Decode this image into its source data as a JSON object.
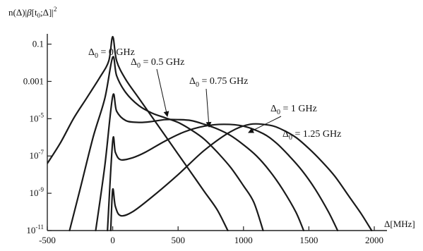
{
  "chart_data": {
    "type": "line",
    "xlabel": "Δ[MHz]",
    "ylabel": "n(Δ)|β[t0;Δ]|²",
    "ylabel_parts": {
      "n": "n(Δ)|",
      "beta": "β",
      "bracket": "[t",
      "sub0": "0",
      "mid": ";Δ]|",
      "sup2": "2"
    },
    "xlabel_parts": {
      "delta": "Δ[MHz]"
    },
    "x_range": [
      -500,
      2000
    ],
    "y_scale": "log",
    "y_range_exp": [
      -11,
      -0.6
    ],
    "x_ticks": [
      -500,
      0,
      500,
      1000,
      1500,
      2000
    ],
    "x_tick_labels": [
      "-500",
      "0",
      "500",
      "1000",
      "1500",
      "2000"
    ],
    "y_ticks": [
      {
        "exp": -1,
        "base": "0.1",
        "sup": ""
      },
      {
        "exp": -3,
        "base": "0.001",
        "sup": ""
      },
      {
        "exp": -5,
        "base": "10",
        "sup": "-5"
      },
      {
        "exp": -7,
        "base": "10",
        "sup": "-7"
      },
      {
        "exp": -9,
        "base": "10",
        "sup": "-9"
      },
      {
        "exp": -11,
        "base": "10",
        "sup": "-11"
      }
    ],
    "series": [
      {
        "name": "Δ0 = 0 GHz",
        "label_main": "Δ",
        "label_sub": "0",
        "label_rest": " = 0 GHz",
        "points": [
          [
            -500,
            -7.4
          ],
          [
            -400,
            -6.3
          ],
          [
            -300,
            -5.0
          ],
          [
            -200,
            -3.9
          ],
          [
            -100,
            -2.8
          ],
          [
            -30,
            -1.9
          ],
          [
            0,
            -0.6
          ],
          [
            30,
            -1.9
          ],
          [
            100,
            -2.9
          ],
          [
            200,
            -3.9
          ],
          [
            300,
            -4.9
          ],
          [
            400,
            -5.9
          ],
          [
            500,
            -6.9
          ],
          [
            600,
            -7.9
          ],
          [
            700,
            -8.9
          ],
          [
            800,
            -9.9
          ],
          [
            880,
            -11.0
          ]
        ]
      },
      {
        "name": "Δ0 = 0.5 GHz",
        "label_main": "Δ",
        "label_sub": "0",
        "label_rest": " = 0.5 GHz",
        "points": [
          [
            -330,
            -11.0
          ],
          [
            -250,
            -8.8
          ],
          [
            -150,
            -6.0
          ],
          [
            -60,
            -3.9
          ],
          [
            0,
            -1.7
          ],
          [
            30,
            -2.7
          ],
          [
            100,
            -3.6
          ],
          [
            200,
            -4.3
          ],
          [
            300,
            -4.7
          ],
          [
            400,
            -4.95
          ],
          [
            500,
            -5.2
          ],
          [
            600,
            -5.6
          ],
          [
            700,
            -6.1
          ],
          [
            800,
            -6.8
          ],
          [
            900,
            -7.6
          ],
          [
            1000,
            -8.6
          ],
          [
            1080,
            -9.5
          ],
          [
            1150,
            -11.0
          ]
        ]
      },
      {
        "name": "Δ0 = 0.75 GHz",
        "label_main": "Δ",
        "label_sub": "0",
        "label_rest": " = 0.75 GHz",
        "points": [
          [
            -130,
            -11.0
          ],
          [
            -60,
            -7.5
          ],
          [
            0,
            -3.8
          ],
          [
            30,
            -4.6
          ],
          [
            100,
            -5.1
          ],
          [
            200,
            -5.2
          ],
          [
            300,
            -5.15
          ],
          [
            400,
            -5.05
          ],
          [
            500,
            -5.05
          ],
          [
            600,
            -5.1
          ],
          [
            700,
            -5.3
          ],
          [
            800,
            -5.55
          ],
          [
            900,
            -5.9
          ],
          [
            1000,
            -6.4
          ],
          [
            1100,
            -7.0
          ],
          [
            1200,
            -7.8
          ],
          [
            1300,
            -8.8
          ],
          [
            1400,
            -10.0
          ],
          [
            1460,
            -11.0
          ]
        ]
      },
      {
        "name": "Δ0 = 1 GHz",
        "label_main": "Δ",
        "label_sub": "0",
        "label_rest": " = 1 GHz",
        "points": [
          [
            -40,
            -11.0
          ],
          [
            0,
            -6.2
          ],
          [
            20,
            -6.8
          ],
          [
            60,
            -7.2
          ],
          [
            150,
            -7.1
          ],
          [
            250,
            -6.8
          ],
          [
            400,
            -6.2
          ],
          [
            550,
            -5.7
          ],
          [
            700,
            -5.4
          ],
          [
            850,
            -5.3
          ],
          [
            1000,
            -5.4
          ],
          [
            1150,
            -5.8
          ],
          [
            1250,
            -6.3
          ],
          [
            1350,
            -7.0
          ],
          [
            1450,
            -7.8
          ],
          [
            1550,
            -8.8
          ],
          [
            1650,
            -10.0
          ],
          [
            1720,
            -11.0
          ]
        ]
      },
      {
        "name": "Δ0 = 1.25 GHz",
        "label_main": "Δ",
        "label_sub": "0",
        "label_rest": " = 1.25 GHz",
        "points": [
          [
            -15,
            -11.0
          ],
          [
            0,
            -8.8
          ],
          [
            20,
            -9.7
          ],
          [
            60,
            -10.2
          ],
          [
            150,
            -10.0
          ],
          [
            300,
            -9.2
          ],
          [
            500,
            -8.0
          ],
          [
            700,
            -6.7
          ],
          [
            900,
            -5.7
          ],
          [
            1050,
            -5.3
          ],
          [
            1200,
            -5.35
          ],
          [
            1300,
            -5.6
          ],
          [
            1400,
            -6.0
          ],
          [
            1500,
            -6.6
          ],
          [
            1600,
            -7.3
          ],
          [
            1700,
            -8.1
          ],
          [
            1800,
            -9.1
          ],
          [
            1900,
            -10.1
          ],
          [
            1980,
            -11.0
          ]
        ]
      }
    ],
    "annotations": [
      {
        "series": 0,
        "label_xy": [
          -165,
          298
        ],
        "anchor": "start"
      },
      {
        "series": 1,
        "label_xy": [
          -175,
          258
        ],
        "anchor": "start"
      },
      {
        "series": 2,
        "label_xy": [
          -270,
          212
        ],
        "anchor": "start"
      },
      {
        "series": 3,
        "label_xy": [
          -380,
          153
        ],
        "anchor": "start"
      },
      {
        "series": 4,
        "label_xy": [
          -398,
          110
        ],
        "anchor": "start"
      }
    ]
  }
}
